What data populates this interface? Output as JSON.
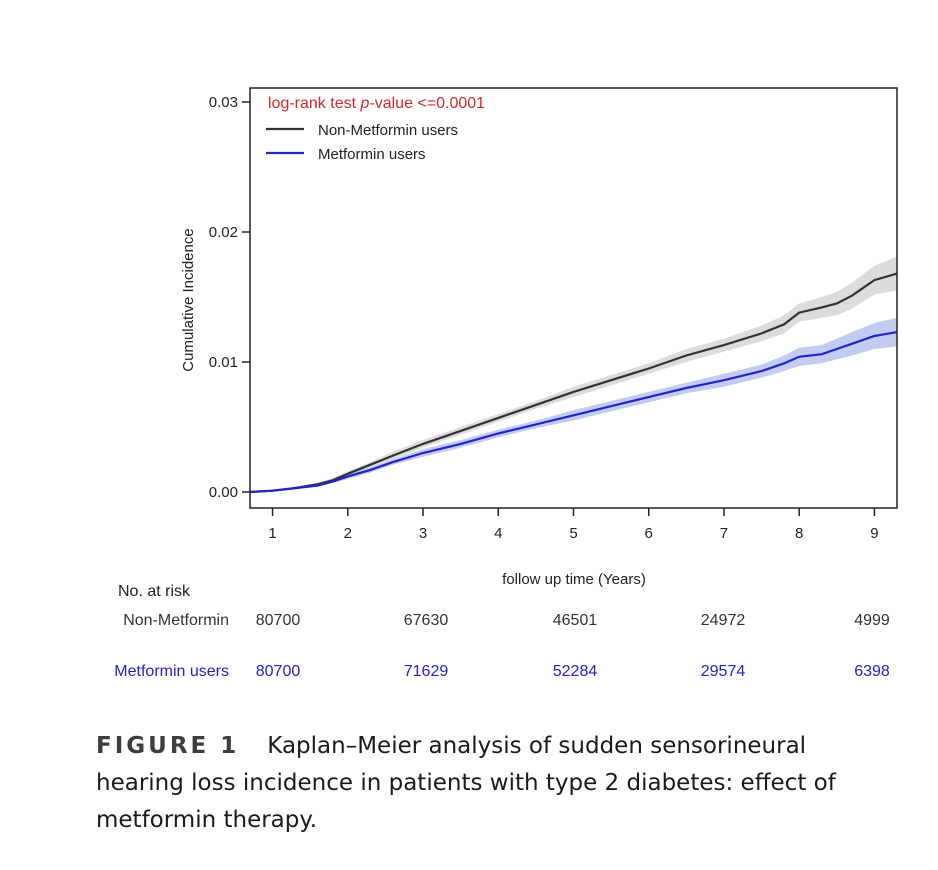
{
  "chart_data": {
    "type": "line",
    "ylabel": "Cumulative Incidence",
    "xlabel": "follow up time (Years)",
    "x_ticks": [
      1,
      2,
      3,
      4,
      5,
      6,
      7,
      8,
      9
    ],
    "y_ticks": [
      "0.00",
      "0.01",
      "0.02",
      "0.03"
    ],
    "xlim": [
      0.7,
      9.3
    ],
    "ylim": [
      0,
      0.03
    ],
    "annotation_prefix": "log-rank test ",
    "annotation_italic": "p",
    "annotation_suffix": "-value <=0.0001",
    "annotation_color": "#d42a2a",
    "legend_position": "top-left",
    "series": [
      {
        "name": "Non-Metformin users",
        "color": "#333333",
        "band_color": "#d6d6d6",
        "x": [
          0.7,
          1.0,
          1.3,
          1.6,
          1.8,
          2.0,
          2.3,
          2.6,
          3.0,
          3.5,
          4.0,
          4.5,
          5.0,
          5.5,
          6.0,
          6.5,
          7.0,
          7.5,
          7.8,
          8.0,
          8.3,
          8.5,
          8.7,
          9.0,
          9.3
        ],
        "values": [
          0.0,
          0.0001,
          0.0003,
          0.0006,
          0.0009,
          0.0014,
          0.0021,
          0.0028,
          0.0037,
          0.0047,
          0.0057,
          0.0067,
          0.0077,
          0.0086,
          0.0095,
          0.0105,
          0.0113,
          0.0122,
          0.0129,
          0.0138,
          0.0142,
          0.0145,
          0.0151,
          0.0163,
          0.0168
        ],
        "band_halfwidth": [
          0.0,
          5e-05,
          0.0001,
          0.0001,
          0.0002,
          0.0002,
          0.0002,
          0.0003,
          0.0003,
          0.0003,
          0.0003,
          0.0003,
          0.0004,
          0.0004,
          0.0004,
          0.0005,
          0.0005,
          0.0006,
          0.0007,
          0.0007,
          0.0008,
          0.0009,
          0.001,
          0.0011,
          0.0013
        ]
      },
      {
        "name": "Metformin users",
        "color": "#2323c8",
        "band_color": "#b7c3ee",
        "x": [
          0.7,
          1.0,
          1.3,
          1.6,
          1.8,
          2.0,
          2.3,
          2.6,
          3.0,
          3.5,
          4.0,
          4.5,
          5.0,
          5.5,
          6.0,
          6.5,
          7.0,
          7.5,
          7.8,
          8.0,
          8.3,
          8.5,
          8.7,
          9.0,
          9.3
        ],
        "values": [
          0.0,
          0.0001,
          0.0003,
          0.0005,
          0.0008,
          0.0012,
          0.0017,
          0.0023,
          0.003,
          0.0037,
          0.0045,
          0.0052,
          0.0059,
          0.0066,
          0.0073,
          0.008,
          0.0086,
          0.0093,
          0.0099,
          0.0104,
          0.0106,
          0.011,
          0.0114,
          0.012,
          0.0123
        ],
        "band_halfwidth": [
          0.0,
          5e-05,
          0.0001,
          0.0001,
          0.0001,
          0.0002,
          0.0002,
          0.0002,
          0.0003,
          0.0003,
          0.0003,
          0.0003,
          0.0004,
          0.0004,
          0.0004,
          0.0004,
          0.0005,
          0.0005,
          0.0006,
          0.0007,
          0.0007,
          0.0008,
          0.0009,
          0.001,
          0.0011
        ]
      }
    ]
  },
  "risk_table": {
    "title": "No. at risk",
    "rows": [
      {
        "label": "Non-Metformin",
        "color": "#333333",
        "values": [
          "80700",
          "67630",
          "46501",
          "24972",
          "4999"
        ]
      },
      {
        "label": "Metformin users",
        "color": "#2323c8",
        "values": [
          "80700",
          "71629",
          "52284",
          "29574",
          "6398"
        ]
      }
    ]
  },
  "caption": {
    "label": "FIGURE 1",
    "text": "Kaplan–Meier analysis of sudden sensorineural hearing loss incidence in patients with type 2 diabetes: effect of metformin therapy."
  }
}
